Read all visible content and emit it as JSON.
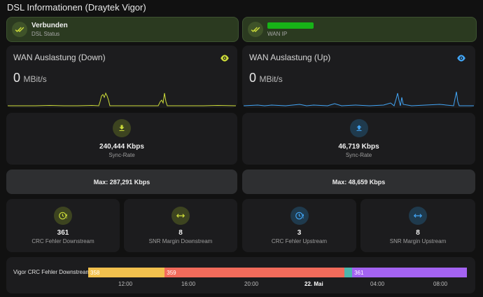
{
  "page_title": "DSL Informationen (Draytek Vigor)",
  "status_left": {
    "value": "Verbunden",
    "label": "DSL Status"
  },
  "status_right": {
    "value": "",
    "label": "WAN IP"
  },
  "wan_down": {
    "title": "WAN Auslastung (Down)",
    "value": "0",
    "unit": "MBit/s",
    "color": "#cddc39"
  },
  "wan_up": {
    "title": "WAN Auslastung (Up)",
    "value": "0",
    "unit": "MBit/s",
    "color": "#42a5f5"
  },
  "sync_down": {
    "value": "240,444 Kbps",
    "label": "Sync-Rate",
    "icon": "download-icon"
  },
  "sync_up": {
    "value": "46,719 Kbps",
    "label": "Sync-Rate",
    "icon": "upload-icon"
  },
  "max_down": "Max: 287,291 Kbps",
  "max_up": "Max: 48,659 Kbps",
  "stats": [
    {
      "value": "361",
      "label": "CRC Fehler Downstream",
      "icon": "alert-clock-icon"
    },
    {
      "value": "8",
      "label": "SNR Margin Downstream",
      "icon": "arrows-horizontal-icon"
    },
    {
      "value": "3",
      "label": "CRC Fehler Upstream",
      "icon": "alert-clock-icon"
    },
    {
      "value": "8",
      "label": "SNR Margin Upstream",
      "icon": "arrows-horizontal-icon"
    }
  ],
  "timeline": {
    "label": "Vigor CRC Fehler Downstream",
    "segments": [
      {
        "value": "358",
        "color": "#f2c14e",
        "fraction": 0.202
      },
      {
        "value": "359",
        "color": "#f26b5b",
        "fraction": 0.475
      },
      {
        "value": "",
        "color": "#4db6ac",
        "fraction": 0.02
      },
      {
        "value": "361",
        "color": "#a463f2",
        "fraction": 0.303
      }
    ],
    "ticks": [
      "12:00",
      "16:00",
      "20:00",
      "22. Mai",
      "04:00",
      "08:00"
    ]
  }
}
